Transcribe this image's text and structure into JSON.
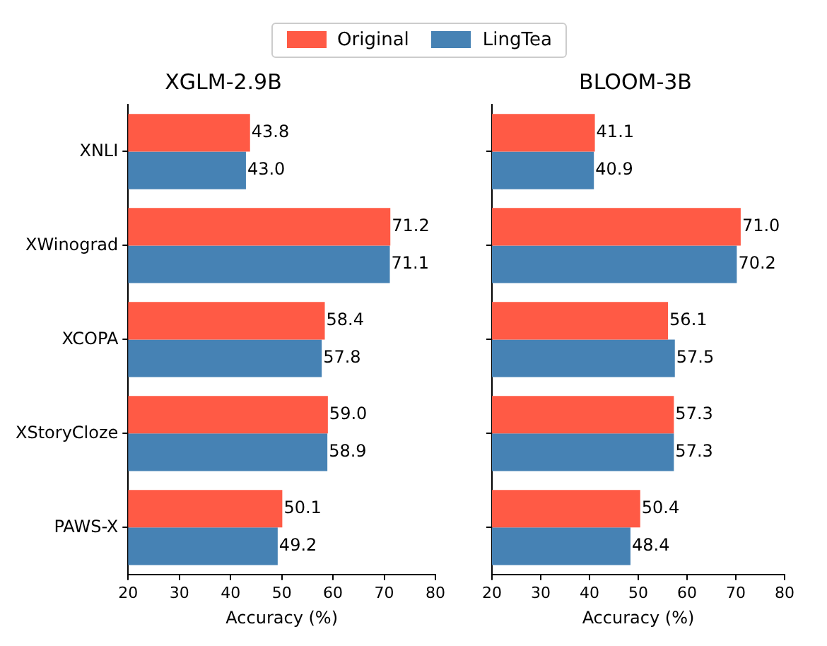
{
  "chart_data": [
    {
      "type": "bar",
      "orientation": "horizontal",
      "title": "XGLM-2.9B",
      "xlabel": "Accuracy (%)",
      "categories": [
        "XNLI",
        "XWinograd",
        "XCOPA",
        "XStoryCloze",
        "PAWS-X"
      ],
      "xlim": [
        20,
        80
      ],
      "xticks": [
        20,
        30,
        40,
        50,
        60,
        70,
        80
      ],
      "grid": false,
      "legend": "top",
      "series": [
        {
          "name": "Original",
          "color": "#ff5a45",
          "values": [
            43.8,
            71.2,
            58.4,
            59.0,
            50.1
          ],
          "value_labels": [
            "43.8",
            "71.2",
            "58.4",
            "59.0",
            "50.1"
          ]
        },
        {
          "name": "LingTea",
          "color": "#4682b4",
          "values": [
            43.0,
            71.1,
            57.8,
            58.9,
            49.2
          ],
          "value_labels": [
            "43.0",
            "71.1",
            "57.8",
            "58.9",
            "49.2"
          ]
        }
      ]
    },
    {
      "type": "bar",
      "orientation": "horizontal",
      "title": "BLOOM-3B",
      "xlabel": "Accuracy (%)",
      "categories": [
        null,
        null,
        null,
        null,
        null
      ],
      "xlim": [
        20,
        80
      ],
      "xticks": [
        20,
        30,
        40,
        50,
        60,
        70,
        80
      ],
      "grid": false,
      "tick_labels": "x",
      "series": [
        {
          "color": "#ff5a45",
          "values": [
            41.1,
            71.0,
            56.1,
            57.3,
            50.4
          ],
          "value_labels": [
            "41.1",
            "71.0",
            "56.1",
            "57.3",
            "50.4"
          ]
        },
        {
          "color": "#4682b4",
          "values": [
            40.9,
            70.2,
            57.5,
            57.3,
            48.4
          ],
          "value_labels": [
            "40.9",
            "70.2",
            "57.5",
            "57.3",
            "48.4"
          ]
        }
      ]
    }
  ]
}
